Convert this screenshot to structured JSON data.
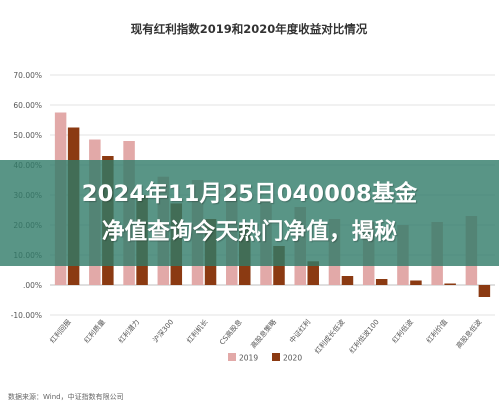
{
  "chart_data": {
    "type": "bar",
    "title": "现有红利指数2019和2020年度收益对比情况",
    "categories": [
      "红利回报",
      "红利质量",
      "红利潜力",
      "沪深300",
      "红利机长",
      "CS高股息",
      "高股息策略",
      "中证红利",
      "红利成长低波",
      "红利低波100",
      "红利低波",
      "红利价值",
      "高股息低波"
    ],
    "series": [
      {
        "name": "2019",
        "color": "#e2a9a8",
        "values": [
          57.5,
          48.5,
          48.0,
          36.1,
          35.0,
          33.5,
          28.0,
          26.0,
          22.0,
          21.0,
          20.0,
          21.0,
          23.0
        ]
      },
      {
        "name": "2020",
        "color": "#8b3a12",
        "values": [
          52.5,
          43.0,
          30.0,
          27.2,
          22.0,
          20.0,
          13.0,
          7.9,
          3.0,
          2.0,
          1.5,
          0.5,
          -4.0
        ]
      }
    ],
    "yaxis": {
      "min": -10,
      "max": 70,
      "step": 10,
      "tick_labels": [
        "-10.00%",
        ".00%",
        "10.00%",
        "20.00%",
        "30.00%",
        "40.00%",
        "50.00%",
        "60.00%",
        "70.00%"
      ]
    },
    "grid": true,
    "legend_position": "bottom",
    "source": "数据来源：Wind，中证指数有限公司"
  },
  "banner": {
    "line1": "2024年11月25日040008基金",
    "line2": "净值查询今天热门净值，揭秘"
  }
}
